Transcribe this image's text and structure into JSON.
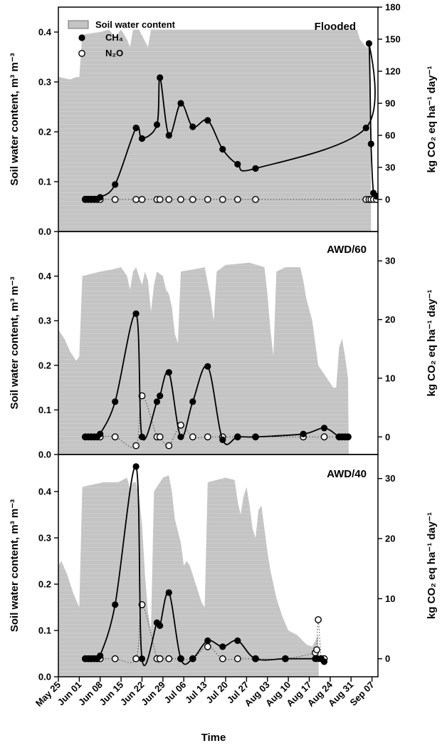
{
  "chart_data": {
    "type": "line",
    "x_axis": {
      "label": "Time",
      "tick_labels": [
        "May 25",
        "Jun 01",
        "Jun 08",
        "Jun 15",
        "Jun 22",
        "Jun 29",
        "Jul 06",
        "Jul 13",
        "Jul 20",
        "Jul 27",
        "Aug 03",
        "Aug 10",
        "Aug 17",
        "Aug 24",
        "Aug 31",
        "Sep 07"
      ],
      "range_days": [
        0,
        107
      ]
    },
    "left_axis": {
      "label": "Soil water content, m³ m⁻³"
    },
    "right_axis": {
      "label": "kg CO₂ eq ha⁻¹ day⁻¹"
    },
    "legend": {
      "position": "top-left",
      "entries": [
        {
          "label": "Soil water content",
          "symbol": "grey-box"
        },
        {
          "label": "CH₄",
          "symbol": "filled-circle"
        },
        {
          "label": "N₂O",
          "symbol": "open-circle"
        }
      ]
    },
    "panels": [
      {
        "title": "Flooded",
        "y_left": {
          "min": 0,
          "max": 0.45,
          "ticks": [
            "0.0",
            "0.1",
            "0.2",
            "0.3",
            "0.4"
          ]
        },
        "y_right": {
          "min": -30,
          "max": 180,
          "ticks": [
            "0",
            "30",
            "60",
            "90",
            "120",
            "150",
            "180"
          ]
        },
        "soil_water": [
          [
            0,
            0.31
          ],
          [
            4,
            0.305
          ],
          [
            6,
            0.31
          ],
          [
            7,
            0.31
          ],
          [
            8,
            0.395
          ],
          [
            14,
            0.4
          ],
          [
            17,
            0.405
          ],
          [
            19,
            0.39
          ],
          [
            21,
            0.405
          ],
          [
            23,
            0.385
          ],
          [
            24,
            0.37
          ],
          [
            25,
            0.405
          ],
          [
            27,
            0.405
          ],
          [
            30,
            0.37
          ],
          [
            31,
            0.405
          ],
          [
            100,
            0.405
          ],
          [
            101,
            0.385
          ],
          [
            103,
            0.37
          ],
          [
            104.5,
            0.37
          ],
          [
            104.7,
            0
          ]
        ],
        "ch4": [
          [
            9,
            0.5
          ],
          [
            10,
            0.5
          ],
          [
            11,
            0.5
          ],
          [
            12,
            0.5
          ],
          [
            13,
            0.5
          ],
          [
            14,
            2
          ],
          [
            19,
            14
          ],
          [
            26,
            67
          ],
          [
            28,
            57
          ],
          [
            33,
            70
          ],
          [
            34,
            114
          ],
          [
            37,
            60
          ],
          [
            41,
            90
          ],
          [
            45,
            68
          ],
          [
            50,
            74
          ],
          [
            55,
            47
          ],
          [
            60,
            33
          ],
          [
            66,
            29
          ],
          [
            103,
            67
          ],
          [
            104,
            146
          ],
          [
            104.7,
            52
          ],
          [
            105.5,
            6
          ],
          [
            106.5,
            3
          ]
        ],
        "n2o": [
          [
            9,
            0
          ],
          [
            10,
            0
          ],
          [
            11,
            0
          ],
          [
            12,
            0
          ],
          [
            13,
            0
          ],
          [
            14,
            0
          ],
          [
            19,
            0
          ],
          [
            26,
            0
          ],
          [
            28,
            0
          ],
          [
            33,
            0
          ],
          [
            34,
            0
          ],
          [
            37,
            0
          ],
          [
            41,
            0
          ],
          [
            45,
            0
          ],
          [
            50,
            0
          ],
          [
            55,
            0
          ],
          [
            60,
            0
          ],
          [
            66,
            0
          ],
          [
            103,
            0
          ],
          [
            104,
            0
          ],
          [
            104.7,
            0
          ],
          [
            105.5,
            0
          ],
          [
            106.5,
            0
          ]
        ]
      },
      {
        "title": "AWD/60",
        "y_left": {
          "min": 0,
          "max": 0.5,
          "ticks": [
            "0.0",
            "0.1",
            "0.2",
            "0.3",
            "0.4"
          ]
        },
        "y_right": {
          "min": -3,
          "max": 35,
          "ticks": [
            "0",
            "10",
            "20",
            "30"
          ]
        },
        "soil_water": [
          [
            0,
            0.28
          ],
          [
            2,
            0.26
          ],
          [
            4,
            0.23
          ],
          [
            6,
            0.21
          ],
          [
            7,
            0.22
          ],
          [
            8,
            0.4
          ],
          [
            14,
            0.41
          ],
          [
            18,
            0.415
          ],
          [
            21,
            0.42
          ],
          [
            23,
            0.4
          ],
          [
            24,
            0.37
          ],
          [
            25,
            0.41
          ],
          [
            26,
            0.42
          ],
          [
            27,
            0.4
          ],
          [
            28,
            0.38
          ],
          [
            29,
            0.41
          ],
          [
            30,
            0.39
          ],
          [
            31,
            0.32
          ],
          [
            32,
            0.38
          ],
          [
            33,
            0.41
          ],
          [
            35,
            0.4
          ],
          [
            36,
            0.37
          ],
          [
            37,
            0.36
          ],
          [
            38,
            0.33
          ],
          [
            39,
            0.27
          ],
          [
            40,
            0.25
          ],
          [
            41,
            0.41
          ],
          [
            45,
            0.415
          ],
          [
            49,
            0.42
          ],
          [
            51,
            0.35
          ],
          [
            52,
            0.3
          ],
          [
            53,
            0.41
          ],
          [
            56,
            0.425
          ],
          [
            64,
            0.43
          ],
          [
            69,
            0.42
          ],
          [
            70,
            0.36
          ],
          [
            71,
            0.28
          ],
          [
            72,
            0.22
          ],
          [
            73,
            0.41
          ],
          [
            76,
            0.42
          ],
          [
            81,
            0.42
          ],
          [
            82,
            0.39
          ],
          [
            83,
            0.35
          ],
          [
            85,
            0.3
          ],
          [
            86,
            0.25
          ],
          [
            87,
            0.2
          ],
          [
            89,
            0.18
          ],
          [
            90,
            0.17
          ],
          [
            91,
            0.16
          ],
          [
            92,
            0.15
          ],
          [
            93,
            0.15
          ],
          [
            94,
            0.24
          ],
          [
            95,
            0.26
          ],
          [
            96,
            0.22
          ],
          [
            97,
            0.17
          ],
          [
            97.2,
            0
          ]
        ],
        "ch4": [
          [
            9,
            0
          ],
          [
            10,
            0
          ],
          [
            11,
            0
          ],
          [
            12,
            0
          ],
          [
            13,
            0
          ],
          [
            14,
            0.5
          ],
          [
            19,
            6
          ],
          [
            26,
            21
          ],
          [
            28,
            0
          ],
          [
            33,
            6
          ],
          [
            34,
            7
          ],
          [
            37,
            11
          ],
          [
            41,
            0
          ],
          [
            45,
            6
          ],
          [
            50,
            12
          ],
          [
            55,
            -0.5
          ],
          [
            60,
            0
          ],
          [
            66,
            0
          ],
          [
            82,
            0.5
          ],
          [
            89,
            1.5
          ],
          [
            94,
            0
          ],
          [
            95,
            0
          ],
          [
            96,
            0
          ],
          [
            97,
            0
          ]
        ],
        "n2o": [
          [
            9,
            0
          ],
          [
            10,
            0
          ],
          [
            11,
            0
          ],
          [
            12,
            0
          ],
          [
            13,
            0
          ],
          [
            14,
            0
          ],
          [
            19,
            0
          ],
          [
            26,
            -1.5
          ],
          [
            28,
            7
          ],
          [
            33,
            0
          ],
          [
            34,
            0
          ],
          [
            37,
            -1.5
          ],
          [
            41,
            2
          ],
          [
            45,
            0
          ],
          [
            50,
            0
          ],
          [
            55,
            0
          ],
          [
            60,
            0
          ],
          [
            66,
            0
          ],
          [
            82,
            0
          ],
          [
            89,
            0
          ],
          [
            94,
            0
          ],
          [
            95,
            0
          ],
          [
            96,
            0
          ],
          [
            97,
            0
          ]
        ]
      },
      {
        "title": "AWD/40",
        "y_left": {
          "min": 0,
          "max": 0.48,
          "ticks": [
            "0.0",
            "0.1",
            "0.2",
            "0.3",
            "0.4"
          ]
        },
        "y_right": {
          "min": -3,
          "max": 34,
          "ticks": [
            "0",
            "10",
            "20",
            "30"
          ]
        },
        "soil_water": [
          [
            0,
            0.24
          ],
          [
            1,
            0.25
          ],
          [
            3,
            0.22
          ],
          [
            5,
            0.18
          ],
          [
            7,
            0.15
          ],
          [
            8,
            0.41
          ],
          [
            15,
            0.42
          ],
          [
            20,
            0.42
          ],
          [
            23,
            0.43
          ],
          [
            24,
            0.405
          ],
          [
            25,
            0.42
          ],
          [
            26,
            0.42
          ],
          [
            27,
            0.39
          ],
          [
            28,
            0.33
          ],
          [
            29,
            0.22
          ],
          [
            30,
            0.14
          ],
          [
            31,
            0.1
          ],
          [
            32,
            0.4
          ],
          [
            35,
            0.43
          ],
          [
            37,
            0.435
          ],
          [
            38,
            0.4
          ],
          [
            39,
            0.34
          ],
          [
            41,
            0.29
          ],
          [
            42,
            0.24
          ],
          [
            43,
            0.25
          ],
          [
            44,
            0.24
          ],
          [
            45,
            0.22
          ],
          [
            46,
            0.2
          ],
          [
            47,
            0.18
          ],
          [
            48,
            0.16
          ],
          [
            49,
            0.15
          ],
          [
            50,
            0.42
          ],
          [
            56,
            0.43
          ],
          [
            59,
            0.425
          ],
          [
            60,
            0.38
          ],
          [
            61,
            0.35
          ],
          [
            62,
            0.39
          ],
          [
            63,
            0.41
          ],
          [
            64,
            0.37
          ],
          [
            65,
            0.32
          ],
          [
            66,
            0.3
          ],
          [
            67,
            0.36
          ],
          [
            68,
            0.37
          ],
          [
            69,
            0.32
          ],
          [
            70,
            0.27
          ],
          [
            71,
            0.23
          ],
          [
            73,
            0.17
          ],
          [
            75,
            0.13
          ],
          [
            77,
            0.1
          ],
          [
            80,
            0.09
          ],
          [
            83,
            0.07
          ],
          [
            85,
            0.065
          ],
          [
            87,
            0.09
          ],
          [
            87.2,
            0
          ]
        ],
        "ch4": [
          [
            9,
            0
          ],
          [
            10,
            0
          ],
          [
            11,
            0
          ],
          [
            12,
            0
          ],
          [
            13,
            0
          ],
          [
            14,
            0.5
          ],
          [
            19,
            9
          ],
          [
            26,
            32
          ],
          [
            28,
            0
          ],
          [
            33,
            6
          ],
          [
            34,
            5.5
          ],
          [
            37,
            11
          ],
          [
            41,
            0
          ],
          [
            45,
            0
          ],
          [
            50,
            3
          ],
          [
            55,
            2
          ],
          [
            60,
            3
          ],
          [
            66,
            0
          ],
          [
            76,
            0
          ],
          [
            86,
            0
          ],
          [
            86.5,
            0
          ],
          [
            87,
            0
          ],
          [
            88,
            0
          ],
          [
            89,
            -0.5
          ]
        ],
        "n2o": [
          [
            9,
            0
          ],
          [
            10,
            0
          ],
          [
            11,
            0
          ],
          [
            12,
            0
          ],
          [
            13,
            0
          ],
          [
            14,
            0
          ],
          [
            19,
            0
          ],
          [
            26,
            0
          ],
          [
            28,
            9
          ],
          [
            33,
            0
          ],
          [
            34,
            0
          ],
          [
            37,
            0
          ],
          [
            41,
            0
          ],
          [
            45,
            0
          ],
          [
            50,
            2
          ],
          [
            55,
            0
          ],
          [
            60,
            0
          ],
          [
            66,
            0
          ],
          [
            76,
            0
          ],
          [
            86,
            1
          ],
          [
            86.5,
            1.5
          ],
          [
            87,
            6.5
          ],
          [
            88,
            0
          ],
          [
            89,
            0
          ]
        ]
      }
    ]
  }
}
